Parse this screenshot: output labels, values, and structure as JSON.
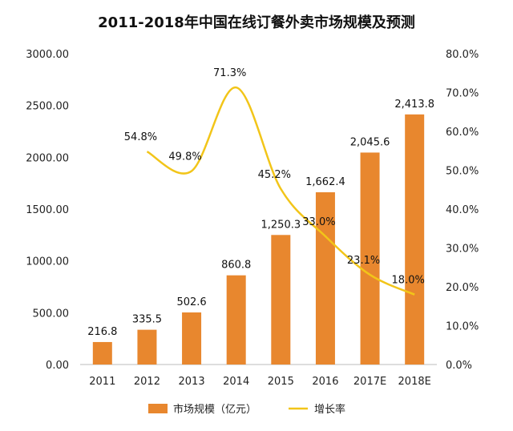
{
  "chart_data": {
    "type": "bar",
    "title": "2011-2018年中国在线订餐外卖市场规模及预测",
    "categories": [
      "2011",
      "2012",
      "2013",
      "2014",
      "2015",
      "2016",
      "2017E",
      "2018E"
    ],
    "series": [
      {
        "name": "市场规模（亿元）",
        "type": "bar",
        "axis": "left",
        "color": "#E8872E",
        "values": [
          216.8,
          335.5,
          502.6,
          860.8,
          1250.3,
          1662.4,
          2045.6,
          2413.8
        ],
        "labels": [
          "216.8",
          "335.5",
          "502.6",
          "860.8",
          "1,250.3",
          "1,662.4",
          "2,045.6",
          "2,413.8"
        ]
      },
      {
        "name": "增长率",
        "type": "line",
        "axis": "right",
        "color": "#F2C519",
        "values": [
          null,
          54.8,
          49.8,
          71.3,
          45.2,
          33.0,
          23.1,
          18.0
        ],
        "labels": [
          "",
          "54.8%",
          "49.8%",
          "71.3%",
          "45.2%",
          "33.0%",
          "23.1%",
          "18.0%"
        ]
      }
    ],
    "y_left": {
      "range": [
        0,
        3000
      ],
      "ticks": [
        0,
        500,
        1000,
        1500,
        2000,
        2500,
        3000
      ],
      "tick_labels": [
        "0.00",
        "500.00",
        "1000.00",
        "1500.00",
        "2000.00",
        "2500.00",
        "3000.00"
      ]
    },
    "y_right": {
      "range": [
        0,
        80
      ],
      "ticks": [
        0,
        10,
        20,
        30,
        40,
        50,
        60,
        70,
        80
      ],
      "tick_labels": [
        "0.0%",
        "10.0%",
        "20.0%",
        "30.0%",
        "40.0%",
        "50.0%",
        "60.0%",
        "70.0%",
        "80.0%"
      ]
    },
    "grid": false,
    "legend": "bottom-center",
    "smooth_line": true
  }
}
